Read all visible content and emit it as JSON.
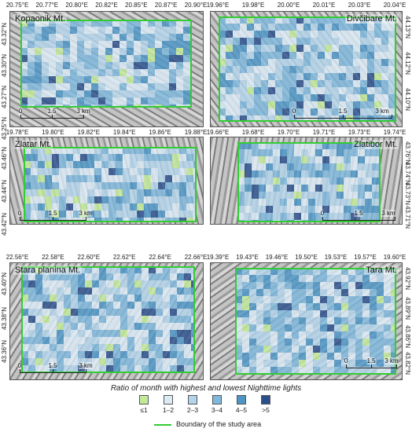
{
  "legend": {
    "title": "Ratio of month with highest and lowest Nighttime lights",
    "classes": [
      {
        "label": "≤1",
        "color": "#c3ea9a"
      },
      {
        "label": "1–2",
        "color": "#dcecf7"
      },
      {
        "label": "2–3",
        "color": "#b3d5ec"
      },
      {
        "label": "3–4",
        "color": "#7fb8dd"
      },
      {
        "label": "4–5",
        "color": "#4c95c6"
      },
      {
        "label": ">5",
        "color": "#2c4f8c"
      }
    ],
    "boundary_label": "Boundary of the study area",
    "boundary_color": "#33cc33"
  },
  "scale": {
    "zero": "0",
    "mid": "1.5",
    "end": "3 km"
  },
  "panels": [
    {
      "name": "Kopaonik Mt.",
      "lon_ticks": [
        "20.75°E",
        "20.77°E",
        "20.80°E",
        "20.82°E",
        "20.85°E",
        "20.87°E",
        "20.90°E"
      ],
      "lat_ticks": [
        "43.32°N",
        "43.30°N",
        "43.27°N",
        "43.25°N"
      ],
      "lat_side": "left"
    },
    {
      "name": "Divčibare Mt.",
      "lon_ticks": [
        "19.96°E",
        "19.98°E",
        "20.00°E",
        "20.01°E",
        "20.03°E",
        "20.04°E"
      ],
      "lat_ticks": [
        "44.13°N",
        "44.12°N",
        "44.10°N"
      ],
      "lat_side": "right"
    },
    {
      "name": "Zlatar Mt.",
      "lon_ticks": [
        "19.78°E",
        "19.80°E",
        "19.82°E",
        "19.84°E",
        "19.86°E",
        "19.88°E"
      ],
      "lat_ticks": [
        "43.46°N",
        "43.44°N",
        "43.42°N"
      ],
      "lat_side": "left"
    },
    {
      "name": "Zlatibor Mt.",
      "lon_ticks": [
        "19.66°E",
        "19.68°E",
        "19.70°E",
        "19.71°E",
        "19.73°E",
        "19.74°E"
      ],
      "lat_ticks": [
        "43.76°N",
        "43.74°N",
        "43.73°N",
        "43.71°N"
      ],
      "lat_side": "right"
    },
    {
      "name": "Stara planina Mt.",
      "lon_ticks": [
        "22.56°E",
        "22.58°E",
        "22.60°E",
        "22.62°E",
        "22.64°E",
        "22.66°E"
      ],
      "lat_ticks": [
        "43.40°N",
        "43.38°N",
        "43.36°N"
      ],
      "lat_side": "left"
    },
    {
      "name": "Tara Mt.",
      "lon_ticks": [
        "19.39°E",
        "19.43°E",
        "19.46°E",
        "19.50°E",
        "19.53°E",
        "19.57°E",
        "19.60°E"
      ],
      "lat_ticks": [
        "43.92°N",
        "43.89°N",
        "43.86°N",
        "43.82°N"
      ],
      "lat_side": "right"
    }
  ]
}
